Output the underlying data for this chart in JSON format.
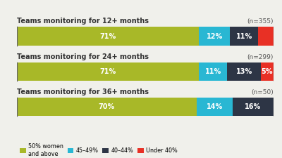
{
  "bars": [
    {
      "label": "Teams monitoring for 12+ months",
      "n": "(n=355)",
      "values": [
        71,
        12,
        11,
        6
      ],
      "show_labels": [
        true,
        true,
        true,
        false
      ]
    },
    {
      "label": "Teams monitoring for 24+ months",
      "n": "(n=299)",
      "values": [
        71,
        11,
        13,
        5
      ],
      "show_labels": [
        true,
        true,
        true,
        true
      ]
    },
    {
      "label": "Teams monitoring for 36+ months",
      "n": "(n=50)",
      "values": [
        70,
        14,
        16,
        0
      ],
      "show_labels": [
        true,
        true,
        true,
        false
      ]
    }
  ],
  "colors": [
    "#a8b828",
    "#29b7d3",
    "#2d3545",
    "#e83025"
  ],
  "legend_labels": [
    "50% women\nand above",
    "45–49%",
    "40–44%",
    "Under 40%"
  ],
  "background_color": "#f0f0eb",
  "text_color_white": "#ffffff",
  "bar_height": 0.52,
  "label_fontsize": 7.0,
  "title_fontsize": 7.0,
  "n_fontsize": 6.5,
  "legend_fontsize": 5.8,
  "title_color": "#333333",
  "n_color": "#555555",
  "tick_color": "#666666"
}
